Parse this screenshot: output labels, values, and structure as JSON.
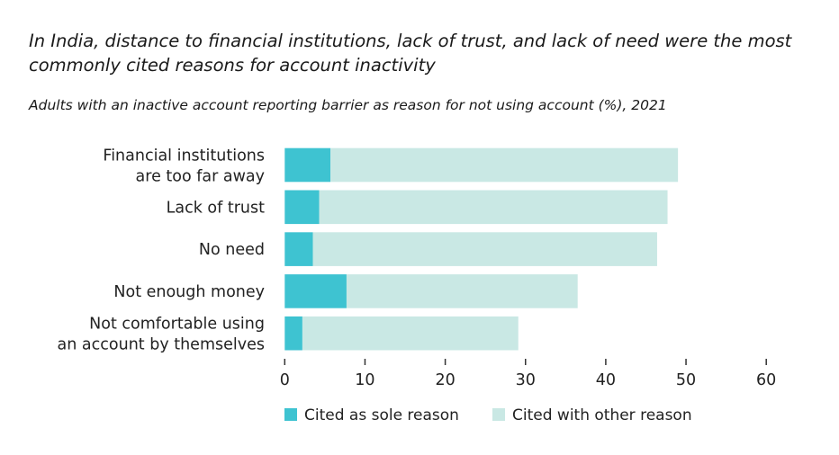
{
  "chart_data": {
    "type": "bar",
    "orientation": "horizontal",
    "stacked": true,
    "title": "In India, distance to financial institutions, lack of trust, and lack of need were the most commonly cited reasons for account inactivity",
    "subtitle": "Adults with an inactive account reporting barrier as reason for not using account (%), 2021",
    "categories": [
      [
        "Financial institutions",
        "are too far away"
      ],
      [
        "Lack of trust"
      ],
      [
        "No need"
      ],
      [
        "Not enough money"
      ],
      [
        "Not comfortable using",
        "an account by themselves"
      ]
    ],
    "series": [
      {
        "name": "Cited as sole reason",
        "color": "#3ec3d1",
        "values": [
          5.7,
          4.3,
          3.5,
          7.7,
          2.2
        ]
      },
      {
        "name": "Cited with other reason",
        "color": "#c9e8e4",
        "values": [
          43.3,
          43.4,
          42.9,
          28.8,
          26.9
        ]
      }
    ],
    "xlim": [
      0,
      60
    ],
    "xticks": [
      0,
      10,
      20,
      30,
      40,
      50,
      60
    ],
    "grid": false,
    "legend": "bottom"
  }
}
